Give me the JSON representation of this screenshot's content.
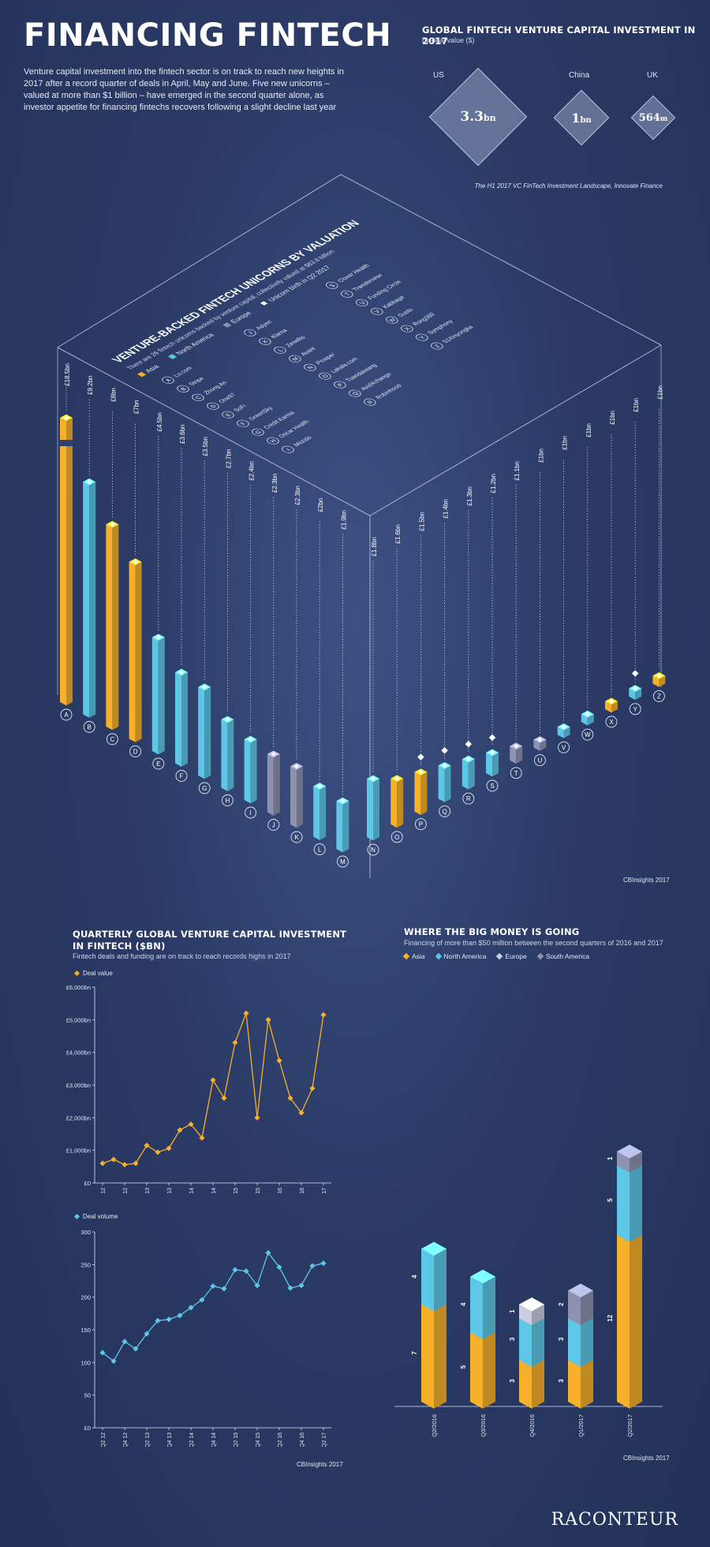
{
  "header": {
    "title": "FINANCING FINTECH",
    "intro": "Venture capital investment into the fintech sector is on track to reach new heights in 2017 after a record quarter of deals in April, May and June. Five new unicorns – valued at more than $1 billion – have emerged in the second quarter alone, as investor appetite for financing fintechs recovers following a slight decline last year"
  },
  "vc2017": {
    "title": "GLOBAL FINTECH VENTURE CAPITAL INVESTMENT IN 2017",
    "subtitle": "by deal value ($)",
    "source": "The H1 2017 VC FinTech Investment Landscape, Innovate Finance",
    "items": [
      {
        "country": "US",
        "value": "3.3",
        "unit": "bn",
        "amount_bn": 3.3
      },
      {
        "country": "China",
        "value": "1",
        "unit": "bn",
        "amount_bn": 1.0
      },
      {
        "country": "UK",
        "value": "564",
        "unit": "m",
        "amount_bn": 0.564
      }
    ]
  },
  "unicorns": {
    "title": "VENTURE-BACKED FINTECH UNICORNS BY VALUATION",
    "subtitle": "There are 26 fintech unicorns backed by venture capital, collectively valued at $83.8 billion",
    "legend": {
      "asia": "Asia",
      "north_america": "North America",
      "europe": "Europe",
      "new": "Unicorn birth in Q2 2017"
    },
    "source": "CBInsights 2017",
    "colors": {
      "Asia": "#f7b02a",
      "North America": "#5ec6e6",
      "Europe": "#8d92b0"
    },
    "companies": [
      {
        "letter": "A",
        "name": "Lu.com",
        "value": 18.5,
        "label": "£18.5bn",
        "region": "Asia",
        "new": false
      },
      {
        "letter": "B",
        "name": "Stripe",
        "value": 9.2,
        "label": "£9.2bn",
        "region": "North America",
        "new": false
      },
      {
        "letter": "C",
        "name": "Zhong An",
        "value": 8,
        "label": "£8bn",
        "region": "Asia",
        "new": false
      },
      {
        "letter": "D",
        "name": "One97",
        "value": 7,
        "label": "£7bn",
        "region": "Asia",
        "new": false
      },
      {
        "letter": "E",
        "name": "SoFi",
        "value": 4.5,
        "label": "£4.5bn",
        "region": "North America",
        "new": false
      },
      {
        "letter": "F",
        "name": "GreenSky",
        "value": 3.6,
        "label": "£3.6bn",
        "region": "North America",
        "new": false
      },
      {
        "letter": "G",
        "name": "Credit Karma",
        "value": 3.5,
        "label": "£3.5bn",
        "region": "North America",
        "new": false
      },
      {
        "letter": "H",
        "name": "Oscar Health",
        "value": 2.7,
        "label": "£2.7bn",
        "region": "North America",
        "new": false
      },
      {
        "letter": "I",
        "name": "Mozido",
        "value": 2.4,
        "label": "£2.4bn",
        "region": "North America",
        "new": false
      },
      {
        "letter": "J",
        "name": "Adyen",
        "value": 2.3,
        "label": "£2.3bn",
        "region": "Europe",
        "new": false
      },
      {
        "letter": "K",
        "name": "Klarna",
        "value": 2.3,
        "label": "£2.3bn",
        "region": "Europe",
        "new": false
      },
      {
        "letter": "L",
        "name": "Zenefits",
        "value": 2,
        "label": "£2bn",
        "region": "North America",
        "new": false
      },
      {
        "letter": "M",
        "name": "Avant",
        "value": 1.9,
        "label": "£1.9bn",
        "region": "North America",
        "new": false
      },
      {
        "letter": "N",
        "name": "Prosper",
        "value": 1.8,
        "label": "£1.8bn",
        "region": "North America",
        "new": false
      },
      {
        "letter": "O",
        "name": "Lakala.com",
        "value": 1.6,
        "label": "£1.6bn",
        "region": "Asia",
        "new": false
      },
      {
        "letter": "P",
        "name": "Tuandaiwang",
        "value": 1.5,
        "label": "£1.5bn",
        "region": "Asia",
        "new": true
      },
      {
        "letter": "Q",
        "name": "AvidXchange",
        "value": 1.4,
        "label": "£1.4bn",
        "region": "North America",
        "new": true
      },
      {
        "letter": "R",
        "name": "Robinhood",
        "value": 1.3,
        "label": "£1.3bn",
        "region": "North America",
        "new": true
      },
      {
        "letter": "S",
        "name": "Clover Health",
        "value": 1.2,
        "label": "£1.2bn",
        "region": "North America",
        "new": true
      },
      {
        "letter": "T",
        "name": "Transferwise",
        "value": 1.1,
        "label": "£1.1bn",
        "region": "Europe",
        "new": false
      },
      {
        "letter": "U",
        "name": "Funding Circle",
        "value": 1,
        "label": "£1bn",
        "region": "Europe",
        "new": false
      },
      {
        "letter": "V",
        "name": "Kabbage",
        "value": 1,
        "label": "£1bn",
        "region": "North America",
        "new": false
      },
      {
        "letter": "W",
        "name": "Gusto",
        "value": 1,
        "label": "£1bn",
        "region": "North America",
        "new": false
      },
      {
        "letter": "X",
        "name": "Rong360",
        "value": 1,
        "label": "£1bn",
        "region": "Asia",
        "new": false
      },
      {
        "letter": "Y",
        "name": "Symphony",
        "value": 1,
        "label": "£1bn",
        "region": "North America",
        "new": true
      },
      {
        "letter": "Z",
        "name": "51Xinyongka",
        "value": 1,
        "label": "£1bn",
        "region": "Asia",
        "new": false
      }
    ]
  },
  "quarterly": {
    "title": "QUARTERLY GLOBAL VENTURE CAPITAL INVESTMENT IN FINTECH ($BN)",
    "subtitle": "Fintech deals and funding are on track to reach records highs in 2017",
    "source": "CBInsights 2017",
    "x_labels": [
      "Q2 12",
      "Q4 12",
      "Q2 13",
      "Q4 13",
      "Q2 14",
      "Q4 14",
      "Q2 15",
      "Q4 15",
      "Q2 16",
      "Q4 16",
      "Q2 17"
    ],
    "value_chart": {
      "legend": "Deal value",
      "color": "#f7b02a",
      "y_ticks": [
        "£0",
        "£1,000bn",
        "£2,000bn",
        "£3,000bn",
        "£4,000bn",
        "£5,000bn",
        "£6,000bn"
      ],
      "ylim": [
        0,
        6000
      ],
      "values": [
        600,
        720,
        560,
        600,
        1150,
        940,
        1060,
        1620,
        1800,
        1380,
        3150,
        2600,
        4300,
        5200,
        2000,
        5000,
        3750,
        2600,
        2150,
        2900,
        5150
      ]
    },
    "volume_chart": {
      "legend": "Deal volume",
      "color": "#5ec6e6",
      "y_ticks": [
        "£0",
        "50",
        "100",
        "150",
        "200",
        "250",
        "300"
      ],
      "ylim": [
        0,
        300
      ],
      "values": [
        115,
        102,
        132,
        121,
        144,
        164,
        166,
        172,
        184,
        196,
        217,
        213,
        242,
        240,
        218,
        268,
        246,
        214,
        218,
        248,
        252
      ]
    }
  },
  "big_money": {
    "title": "WHERE THE BIG MONEY IS GOING",
    "subtitle": "Financing of more than $50 million between the second quarters of 2016 and 2017",
    "source": "CBInsights 2017",
    "legend": [
      "Asia",
      "North America",
      "Europe",
      "South America"
    ],
    "colors": {
      "Asia": "#f7b02a",
      "North America": "#5ec6e6",
      "Europe": "#c9cde0",
      "South America": "#8d92b0"
    },
    "categories": [
      "Q2/2016",
      "Q3/2016",
      "Q4/2016",
      "Q1/2017",
      "Q2/2017"
    ],
    "stacks": [
      [
        {
          "region": "Asia",
          "value": 7
        },
        {
          "region": "North America",
          "value": 4
        }
      ],
      [
        {
          "region": "Asia",
          "value": 5
        },
        {
          "region": "North America",
          "value": 4
        }
      ],
      [
        {
          "region": "Asia",
          "value": 3
        },
        {
          "region": "North America",
          "value": 3
        },
        {
          "region": "Europe",
          "value": 1
        }
      ],
      [
        {
          "region": "Asia",
          "value": 3
        },
        {
          "region": "North America",
          "value": 3
        },
        {
          "region": "South America",
          "value": 2
        }
      ],
      [
        {
          "region": "Asia",
          "value": 12
        },
        {
          "region": "North America",
          "value": 5
        },
        {
          "region": "South America",
          "value": 1
        }
      ]
    ]
  },
  "brand": "RACONTEUR"
}
